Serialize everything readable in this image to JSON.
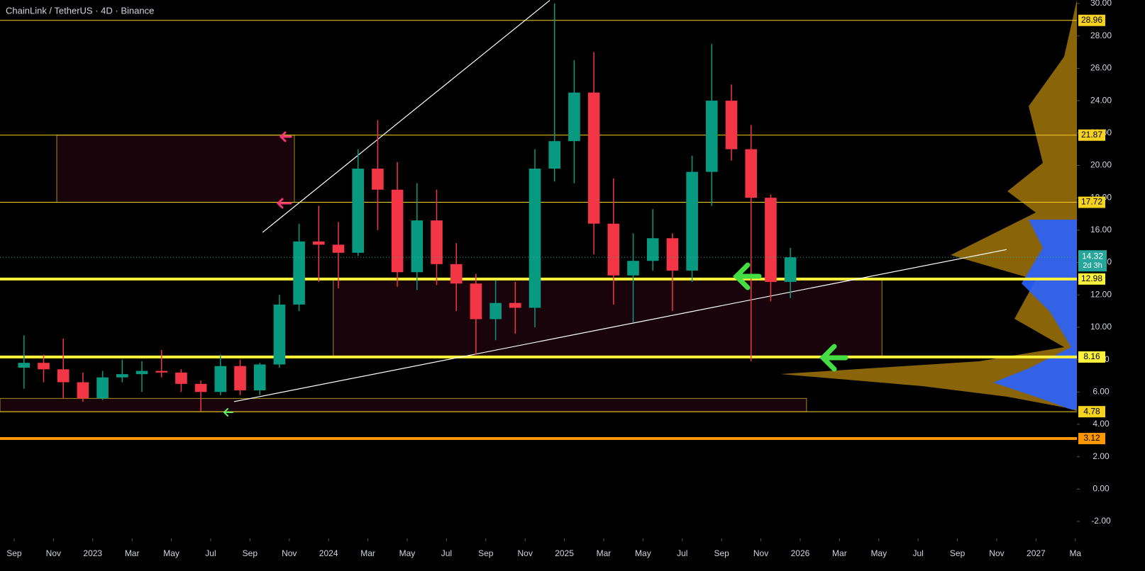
{
  "chart_data": {
    "type": "candlestick",
    "title": "ChainLink / TetherUS · 4D · Binance",
    "x": [
      0.5,
      1.5,
      2.5,
      3.5,
      4.5,
      5.5,
      6.5,
      7.5,
      8.5,
      9.5,
      10.5,
      11.5,
      12.5,
      13.5,
      14.5,
      15.5,
      16.5,
      17.5,
      18.5,
      19.5,
      20.5,
      21.5,
      22.5,
      23.5,
      24.5,
      25.5,
      26.5,
      27.5,
      28.5,
      29.5,
      30.5,
      31.5,
      32.5,
      33.5,
      34.5,
      35.5,
      36.5,
      37.5,
      38.5,
      39.5
    ],
    "open": [
      7.5,
      7.8,
      7.4,
      6.6,
      5.6,
      6.9,
      7.1,
      7.3,
      7.2,
      6.5,
      6.0,
      7.6,
      6.1,
      7.7,
      11.4,
      15.3,
      15.1,
      14.6,
      19.8,
      18.5,
      13.4,
      16.6,
      13.9,
      12.7,
      10.5,
      11.5,
      11.2,
      19.8,
      21.5,
      24.5,
      16.4,
      13.2,
      14.1,
      15.5,
      13.5,
      19.6,
      24.0,
      21.0,
      18.0,
      12.8
    ],
    "high": [
      9.5,
      8.3,
      9.3,
      7.2,
      7.3,
      8.0,
      7.9,
      8.6,
      7.4,
      6.7,
      8.3,
      8.0,
      7.8,
      12.0,
      16.4,
      17.5,
      16.5,
      21.0,
      22.8,
      20.2,
      18.9,
      18.5,
      15.2,
      13.3,
      12.9,
      12.8,
      21.0,
      30.0,
      26.5,
      27.0,
      19.2,
      15.8,
      17.3,
      15.8,
      20.6,
      27.5,
      25.0,
      22.5,
      18.2,
      14.9
    ],
    "low": [
      6.2,
      6.6,
      5.6,
      5.4,
      5.5,
      6.6,
      6.0,
      6.9,
      6.0,
      4.8,
      5.8,
      5.8,
      5.8,
      7.5,
      11.0,
      12.8,
      12.4,
      14.4,
      16.0,
      12.5,
      12.3,
      12.6,
      11.0,
      8.3,
      9.2,
      9.6,
      10.0,
      19.0,
      18.9,
      14.5,
      11.4,
      10.3,
      13.5,
      11.0,
      12.8,
      17.5,
      20.3,
      7.9,
      11.6,
      11.8
    ],
    "close": [
      7.8,
      7.4,
      6.6,
      5.6,
      6.9,
      7.1,
      7.3,
      7.2,
      6.5,
      6.0,
      7.6,
      6.1,
      7.7,
      11.4,
      15.3,
      15.1,
      14.6,
      19.8,
      18.5,
      13.4,
      16.6,
      13.9,
      12.7,
      10.5,
      11.5,
      11.2,
      19.8,
      21.5,
      24.5,
      16.4,
      13.2,
      14.1,
      15.5,
      13.5,
      19.6,
      24.0,
      21.0,
      18.0,
      12.8,
      14.32
    ],
    "up_color": "#089981",
    "down_color": "#f23645",
    "last_price": 14.32,
    "countdown": "2d 3h",
    "levels": [
      28.96,
      21.87,
      17.72,
      12.98,
      8.16,
      4.78,
      3.12
    ],
    "level_colors": [
      "#f5d21f",
      "#f5d21f",
      "#f5d21f",
      "#fff23a",
      "#fff23a",
      "#f5d21f",
      "#ff9800"
    ],
    "zones": [
      {
        "from": 17.72,
        "to": 21.87,
        "start": 2.17,
        "end": 14.26
      },
      {
        "from": 8.16,
        "to": 12.98,
        "start": 16.24,
        "end": 44.16
      },
      {
        "from": 4.78,
        "to": 5.6,
        "start": -0.72,
        "end": 40.32
      }
    ],
    "trendlines": [
      {
        "x": [
          11.19,
          50.5
        ],
        "y": [
          5.4,
          14.8
        ]
      },
      {
        "x": [
          12.64,
          27.26
        ],
        "y": [
          15.86,
          30.2
        ]
      }
    ],
    "xlim": [
      -0.72,
      54.08
    ],
    "xticks": [
      {
        "value": 0,
        "label": "Sep"
      },
      {
        "value": 2,
        "label": "Nov"
      },
      {
        "value": 4,
        "label": "2023"
      },
      {
        "value": 6,
        "label": "Mar"
      },
      {
        "value": 8,
        "label": "May"
      },
      {
        "value": 10,
        "label": "Jul"
      },
      {
        "value": 12,
        "label": "Sep"
      },
      {
        "value": 14,
        "label": "Nov"
      },
      {
        "value": 16,
        "label": "2024"
      },
      {
        "value": 18,
        "label": "Mar"
      },
      {
        "value": 20,
        "label": "May"
      },
      {
        "value": 22,
        "label": "Jul"
      },
      {
        "value": 24,
        "label": "Sep"
      },
      {
        "value": 26,
        "label": "Nov"
      },
      {
        "value": 28,
        "label": "2025"
      },
      {
        "value": 30,
        "label": "Mar"
      },
      {
        "value": 32,
        "label": "May"
      },
      {
        "value": 34,
        "label": "Jul"
      },
      {
        "value": 36,
        "label": "Sep"
      },
      {
        "value": 38,
        "label": "Nov"
      },
      {
        "value": 40,
        "label": "2026"
      },
      {
        "value": 42,
        "label": "Mar"
      },
      {
        "value": 44,
        "label": "May"
      },
      {
        "value": 46,
        "label": "Jul"
      },
      {
        "value": 48,
        "label": "Sep"
      },
      {
        "value": 50,
        "label": "Nov"
      },
      {
        "value": 52,
        "label": "2027"
      },
      {
        "value": 54,
        "label": "Ma"
      }
    ],
    "ylim": [
      -3.05,
      30.22
    ],
    "yticks": [
      {
        "value": 30,
        "label": "30.00"
      },
      {
        "value": 28,
        "label": "28.00"
      },
      {
        "value": 26,
        "label": "26.00"
      },
      {
        "value": 24,
        "label": "24.00"
      },
      {
        "value": 22,
        "label": "22.00"
      },
      {
        "value": 20,
        "label": "20.00"
      },
      {
        "value": 18,
        "label": "18.00"
      },
      {
        "value": 16,
        "label": "16.00"
      },
      {
        "value": 14,
        "label": "14.00"
      },
      {
        "value": 12,
        "label": "12.00"
      },
      {
        "value": 10,
        "label": "10.00"
      },
      {
        "value": 8,
        "label": "8.00"
      },
      {
        "value": 6,
        "label": "6.00"
      },
      {
        "value": 4,
        "label": "4.00"
      },
      {
        "value": 2,
        "label": "2.00"
      },
      {
        "value": 0,
        "label": "0.00"
      },
      {
        "value": -2,
        "label": "-2.00"
      }
    ]
  }
}
